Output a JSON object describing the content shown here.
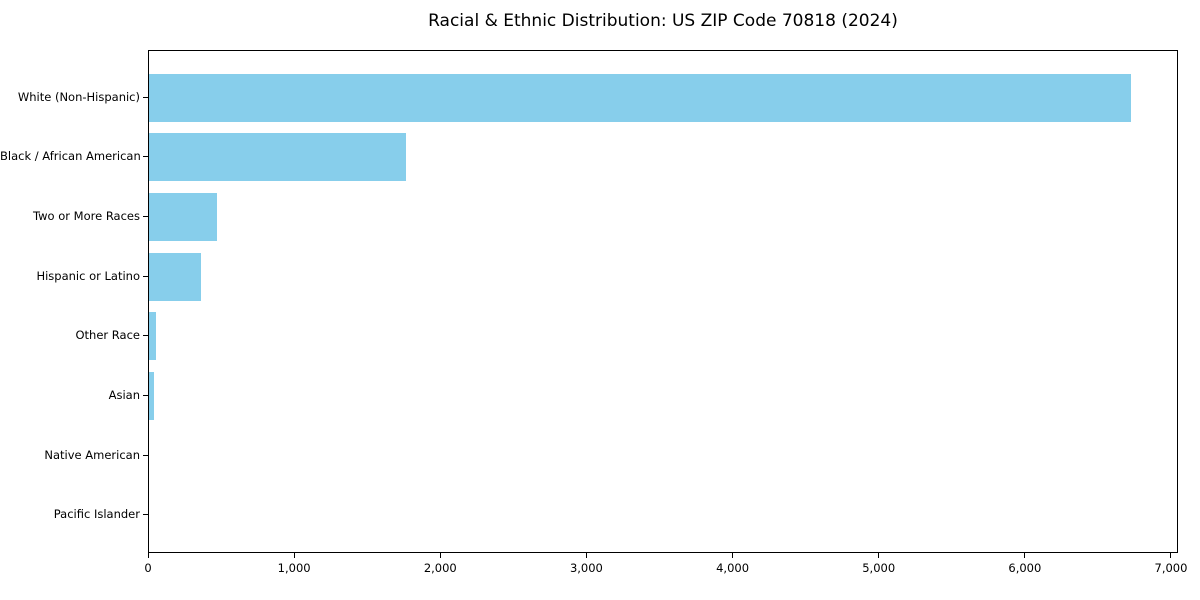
{
  "page": {
    "background": "#ffffff",
    "text_color": "#000000"
  },
  "chart_data": {
    "type": "bar",
    "orientation": "horizontal",
    "title": "Racial & Ethnic Distribution: US ZIP Code 70818 (2024)",
    "categories": [
      "White (Non-Hispanic)",
      "Black / African American",
      "Two or More Races",
      "Hispanic or Latino",
      "Other Race",
      "Asian",
      "Native American",
      "Pacific Islander"
    ],
    "values": [
      6720,
      1760,
      465,
      355,
      48,
      32,
      0,
      0
    ],
    "xlabel": "",
    "ylabel": "",
    "xlim": [
      0,
      7048
    ],
    "xticks": [
      0,
      1000,
      2000,
      3000,
      4000,
      5000,
      6000,
      7000
    ],
    "xtick_labels": [
      "0",
      "1,000",
      "2,000",
      "3,000",
      "4,000",
      "5,000",
      "6,000",
      "7,000"
    ],
    "grid": false,
    "legend": false,
    "bar_color": "#87CEEB",
    "axis_color": "#000000"
  }
}
